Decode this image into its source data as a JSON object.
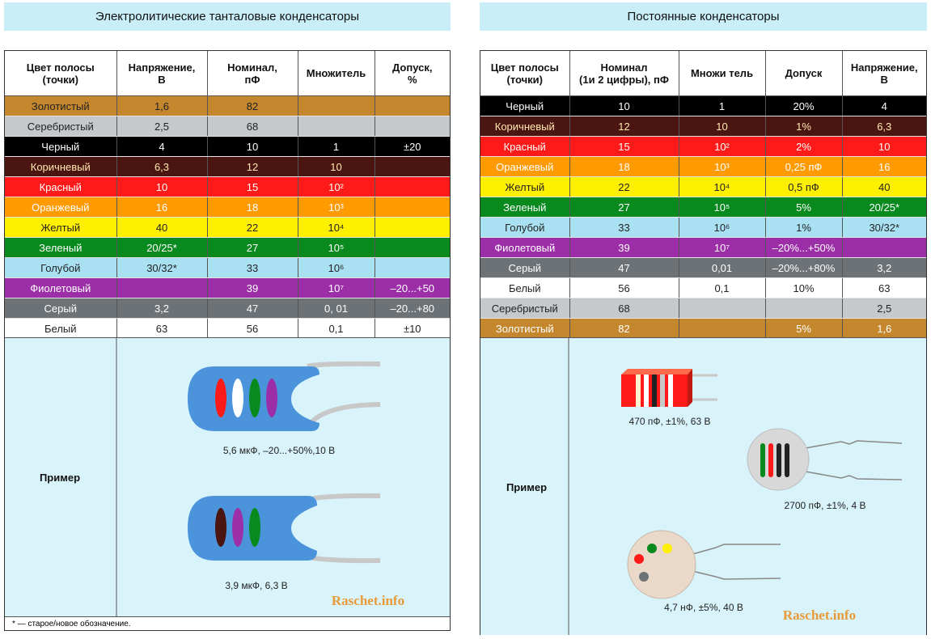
{
  "left": {
    "title": "Электролитические танталовые конденсаторы",
    "header": [
      "Цвет полосы\n(точки)",
      "Напряжение,\nВ",
      "Номинал,\nпФ",
      "Множитель",
      "Допуск,\n%"
    ],
    "rows": [
      {
        "color": "#c4872e",
        "text_color": "#222222",
        "cells": [
          "Золотистый",
          "1,6",
          "82",
          null,
          null
        ]
      },
      {
        "color": "#c5c9cc",
        "text_color": "#222222",
        "cells": [
          "Серебристый",
          "2,5",
          "68",
          null,
          null
        ]
      },
      {
        "color": "#000000",
        "text_color": "#ffffff",
        "cells": [
          "Черный",
          "4",
          "10",
          "1",
          "±20"
        ]
      },
      {
        "color": "#4b1511",
        "text_color": "#ffe9b0",
        "cells": [
          "Коричневый",
          "6,3",
          "12",
          "10",
          null
        ]
      },
      {
        "color": "#ff1a1a",
        "text_color": "#ffffff",
        "cells": [
          "Красный",
          "10",
          "15",
          "10²",
          null
        ]
      },
      {
        "color": "#ff9a00",
        "text_color": "#ffffff",
        "cells": [
          "Оранжевый",
          "16",
          "18",
          "10³",
          null
        ]
      },
      {
        "color": "#fff000",
        "text_color": "#222222",
        "cells": [
          "Желтый",
          "40",
          "22",
          "10⁴",
          null
        ]
      },
      {
        "color": "#098a1f",
        "text_color": "#ffffff",
        "cells": [
          "Зеленый",
          "20/25*",
          "27",
          "10⁵",
          null
        ]
      },
      {
        "color": "#a9e1f2",
        "text_color": "#222222",
        "cells": [
          "Голубой",
          "30/32*",
          "33",
          "10⁶",
          null
        ]
      },
      {
        "color": "#9c2ea8",
        "text_color": "#ffffff",
        "cells": [
          "Фиолетовый",
          null,
          "39",
          "10⁷",
          "–20...+50"
        ]
      },
      {
        "color": "#6d7277",
        "text_color": "#ffffff",
        "cells": [
          "Серый",
          "3,2",
          "47",
          "0, 01",
          "–20...+80"
        ]
      },
      {
        "color": "#ffffff",
        "text_color": "#222222",
        "cells": [
          "Белый",
          "63",
          "56",
          "0,1",
          "±10"
        ]
      }
    ],
    "example": {
      "label": "Пример",
      "captions": [
        "5,6 мкФ, –20...+50%,10 В",
        "3,9 мкФ, 6,3 В"
      ]
    },
    "watermark": "Raschet.info",
    "footnote": "* — старое/новое обозначение."
  },
  "right": {
    "title": "Постоянные конденсаторы",
    "header": [
      "Цвет полосы\n(точки)",
      "Номинал\n(1и 2 цифры), пФ",
      "Множи тель",
      "Допуск",
      "Напряжение,\nВ"
    ],
    "rows": [
      {
        "color": "#000000",
        "text_color": "#ffffff",
        "cells": [
          "Черный",
          "10",
          "1",
          "20%",
          "4"
        ]
      },
      {
        "color": "#4b1511",
        "text_color": "#ffe9b0",
        "cells": [
          "Коричневый",
          "12",
          "10",
          "1%",
          "6,3"
        ]
      },
      {
        "color": "#ff1a1a",
        "text_color": "#ffffff",
        "cells": [
          "Красный",
          "15",
          "10²",
          "2%",
          "10"
        ]
      },
      {
        "color": "#ff9a00",
        "text_color": "#ffffff",
        "cells": [
          "Оранжевый",
          "18",
          "10³",
          "0,25 пФ",
          "16"
        ]
      },
      {
        "color": "#fff000",
        "text_color": "#222222",
        "cells": [
          "Желтый",
          "22",
          "10⁴",
          "0,5 пФ",
          "40"
        ]
      },
      {
        "color": "#098a1f",
        "text_color": "#ffffff",
        "cells": [
          "Зеленый",
          "27",
          "10⁵",
          "5%",
          "20/25*"
        ]
      },
      {
        "color": "#a9e1f2",
        "text_color": "#222222",
        "cells": [
          "Голубой",
          "33",
          "10⁶",
          "1%",
          "30/32*"
        ]
      },
      {
        "color": "#9c2ea8",
        "text_color": "#ffffff",
        "cells": [
          "Фиолетовый",
          "39",
          "10⁷",
          "–20%...+50%",
          null
        ]
      },
      {
        "color": "#6d7277",
        "text_color": "#ffffff",
        "cells": [
          "Серый",
          "47",
          "0,01",
          "–20%...+80%",
          "3,2"
        ]
      },
      {
        "color": "#ffffff",
        "text_color": "#222222",
        "cells": [
          "Белый",
          "56",
          "0,1",
          "10%",
          "63"
        ]
      },
      {
        "color": "#c5c9cc",
        "text_color": "#222222",
        "cells": [
          "Серебристый",
          "68",
          null,
          null,
          "2,5"
        ]
      },
      {
        "color": "#c4872e",
        "text_color": "#ffffff",
        "cells": [
          "Золотистый",
          "82",
          null,
          "5%",
          "1,6"
        ]
      }
    ],
    "example": {
      "label": "Пример",
      "captions": [
        "470 пФ, ±1%, 63 В",
        "2700 пФ, ±1%, 4 В",
        "4,7 нФ, ±5%, 40 В"
      ]
    },
    "watermark": "Raschet.info"
  }
}
